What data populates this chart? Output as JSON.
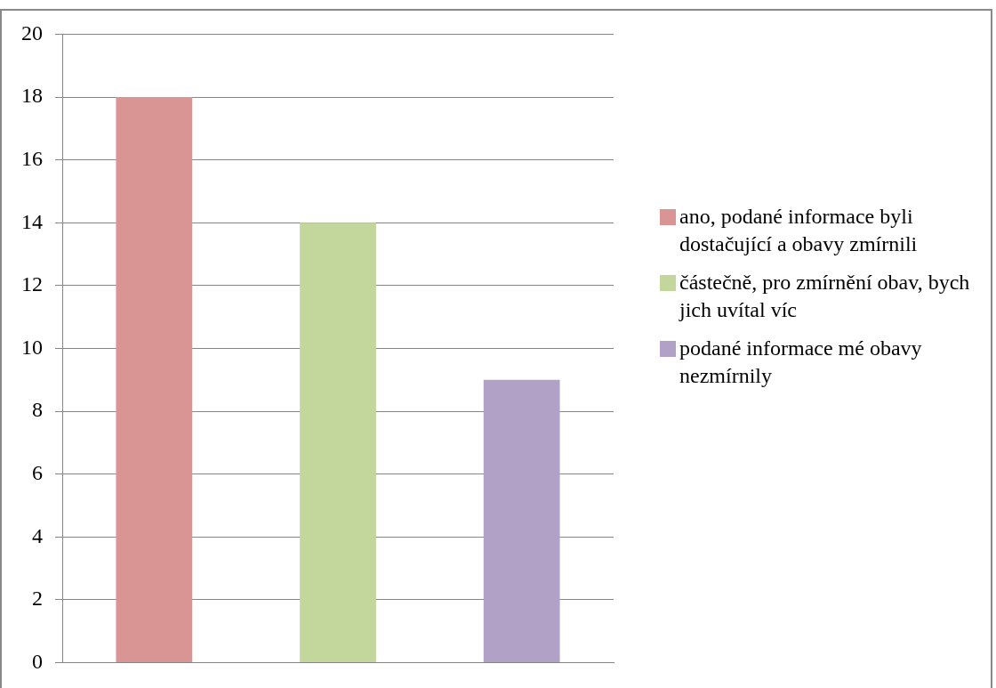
{
  "chart_data": {
    "type": "bar",
    "categories": [
      null
    ],
    "series": [
      {
        "name": "ano, podané informace byli dostačující a obavy zmírnili",
        "color": "#d99594",
        "values": [
          18
        ]
      },
      {
        "name": "částečně, pro zmírnění obav, bych jich uvítal víc",
        "color": "#c3d69b",
        "values": [
          14
        ]
      },
      {
        "name": "podané informace mé obavy nezmírnily",
        "color": "#b2a1c7",
        "values": [
          9
        ]
      }
    ],
    "ylim": [
      0,
      20
    ],
    "yticks": [
      0,
      2,
      4,
      6,
      8,
      10,
      12,
      14,
      16,
      18,
      20
    ],
    "grid": "y",
    "legend": "right"
  }
}
